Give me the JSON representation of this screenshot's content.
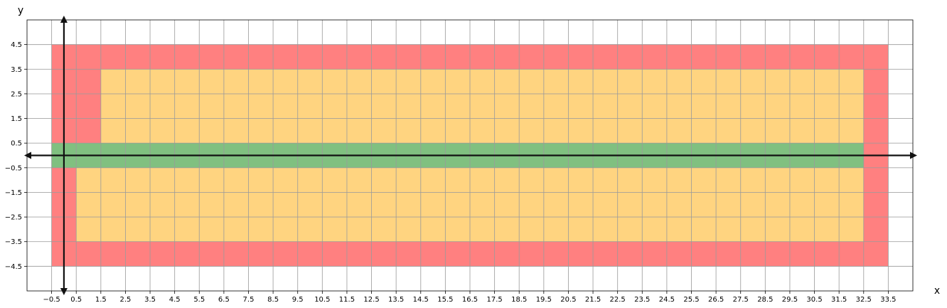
{
  "chart_data": {
    "type": "heatmap",
    "xlabel": "x",
    "ylabel": "y",
    "xlim": [
      -1.5,
      34.5
    ],
    "ylim": [
      -5.5,
      5.5
    ],
    "grid": true,
    "x_ticks": [
      -0.5,
      0.5,
      1.5,
      2.5,
      3.5,
      4.5,
      5.5,
      6.5,
      7.5,
      8.5,
      9.5,
      10.5,
      11.5,
      12.5,
      13.5,
      14.5,
      15.5,
      16.5,
      17.5,
      18.5,
      19.5,
      20.5,
      21.5,
      22.5,
      23.5,
      24.5,
      25.5,
      26.5,
      27.5,
      28.5,
      29.5,
      30.5,
      31.5,
      32.5,
      33.5
    ],
    "x_tick_labels": [
      "−0.5",
      "0.5",
      "1.5",
      "2.5",
      "3.5",
      "4.5",
      "5.5",
      "6.5",
      "7.5",
      "8.5",
      "9.5",
      "10.5",
      "11.5",
      "12.5",
      "13.5",
      "14.5",
      "15.5",
      "16.5",
      "17.5",
      "18.5",
      "19.5",
      "20.5",
      "21.5",
      "22.5",
      "23.5",
      "24.5",
      "25.5",
      "26.5",
      "27.5",
      "28.5",
      "29.5",
      "30.5",
      "31.5",
      "32.5",
      "33.5"
    ],
    "y_ticks": [
      4.5,
      3.5,
      2.5,
      1.5,
      0.5,
      -0.5,
      -1.5,
      -2.5,
      -3.5,
      -4.5
    ],
    "y_tick_labels": [
      "4.5",
      "3.5",
      "2.5",
      "1.5",
      "0.5",
      "−0.5",
      "−1.5",
      "−2.5",
      "−3.5",
      "−4.5"
    ],
    "colors": {
      "red": "#ff8080",
      "orange": "#ffd480",
      "green": "#80c080",
      "grid": "#9a9a9a",
      "axis": "#111111"
    },
    "regions": [
      {
        "color": "red",
        "x": [
          -0.5,
          33.5
        ],
        "y": [
          -4.5,
          4.5
        ]
      },
      {
        "color": "orange",
        "x": [
          1.5,
          32.5
        ],
        "y": [
          0.5,
          3.5
        ]
      },
      {
        "color": "orange",
        "x": [
          0.5,
          32.5
        ],
        "y": [
          -3.5,
          -0.5
        ]
      },
      {
        "color": "green",
        "x": [
          -0.5,
          32.5
        ],
        "y": [
          -0.5,
          0.5
        ]
      }
    ]
  }
}
